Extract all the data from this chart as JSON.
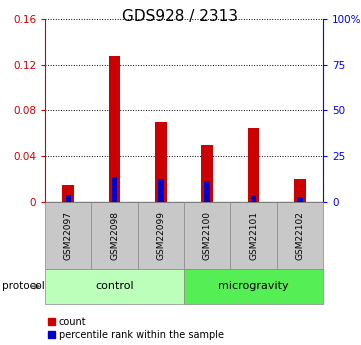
{
  "title": "GDS928 / 2313",
  "samples": [
    "GSM22097",
    "GSM22098",
    "GSM22099",
    "GSM22100",
    "GSM22101",
    "GSM22102"
  ],
  "count_values": [
    0.015,
    0.128,
    0.07,
    0.05,
    0.065,
    0.02
  ],
  "percentile_values": [
    0.006,
    0.022,
    0.02,
    0.018,
    0.006,
    0.004
  ],
  "ylim_left": [
    0,
    0.16
  ],
  "ylim_right": [
    0,
    100
  ],
  "yticks_left": [
    0,
    0.04,
    0.08,
    0.12,
    0.16
  ],
  "yticks_right": [
    0,
    25,
    50,
    75,
    100
  ],
  "ytick_labels_left": [
    "0",
    "0.04",
    "0.08",
    "0.12",
    "0.16"
  ],
  "ytick_labels_right": [
    "0",
    "25",
    "50",
    "75",
    "100%"
  ],
  "groups": [
    {
      "label": "control",
      "indices": [
        0,
        1,
        2
      ],
      "color": "#bbffbb"
    },
    {
      "label": "microgravity",
      "indices": [
        3,
        4,
        5
      ],
      "color": "#55ee55"
    }
  ],
  "red_color": "#cc0000",
  "blue_color": "#0000cc",
  "gray_bg": "#c8c8c8",
  "protocol_label": "protocol",
  "legend_count": "count",
  "legend_percentile": "percentile rank within the sample",
  "title_fontsize": 11,
  "tick_fontsize": 7.5,
  "sample_fontsize": 6.5,
  "group_fontsize": 8
}
